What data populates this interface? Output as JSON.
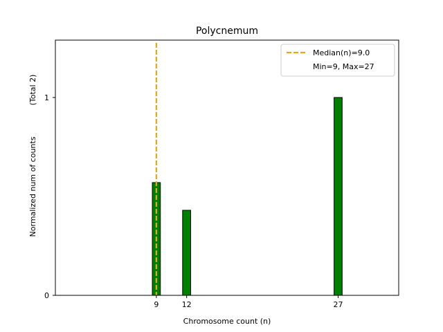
{
  "chart_data": {
    "type": "bar",
    "title": "Polycnemum",
    "xlabel": "Chromosome count (n)",
    "ylabel": "Normalized num of counts",
    "ylabel_note": "(Total 2)",
    "xlim": [
      -1,
      33
    ],
    "ylim": [
      0,
      1.29
    ],
    "x_ticks": [
      9,
      12,
      27
    ],
    "y_ticks": [
      0,
      1
    ],
    "bars": [
      {
        "x": 9,
        "value": 0.57
      },
      {
        "x": 12,
        "value": 0.43
      },
      {
        "x": 27,
        "value": 1.0
      }
    ],
    "bar_width": 0.8,
    "median": 9.0,
    "median_label": "Median(n)=9.0",
    "range_label": "Min=9, Max=27",
    "colors": {
      "bar_fill": "#008000",
      "bar_edge": "#000000",
      "median_line": "#e6a817"
    },
    "legend_position": "top-right"
  }
}
